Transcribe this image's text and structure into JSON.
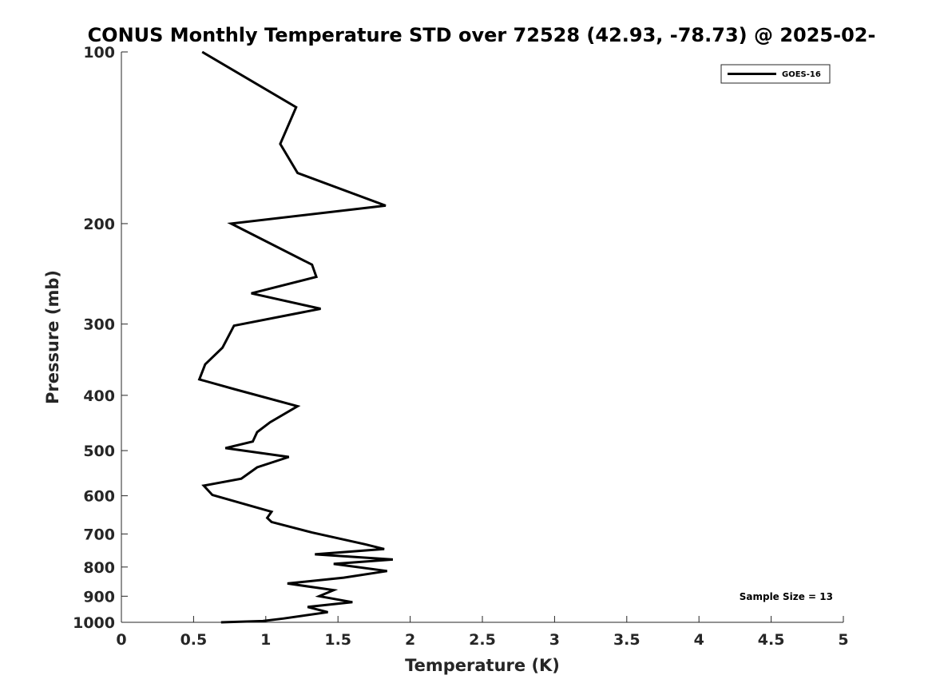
{
  "chart_data": {
    "type": "line",
    "title": "CONUS Monthly Temperature STD over 72528 (42.93, -78.73) @ 2025-02-",
    "xlabel": "Temperature (K)",
    "ylabel": "Pressure (mb)",
    "xlim": [
      0,
      5
    ],
    "ylim": [
      100,
      1000
    ],
    "y_scale": "log",
    "y_inverted": true,
    "xticks": [
      "0",
      "0.5",
      "1",
      "1.5",
      "2",
      "2.5",
      "3",
      "3.5",
      "4",
      "4.5",
      "5"
    ],
    "yticks": [
      "100",
      "200",
      "300",
      "400",
      "500",
      "600",
      "700",
      "800",
      "900",
      "1000"
    ],
    "legend_position": "top-right",
    "grid": false,
    "annotation": "Sample Size = 13",
    "series": [
      {
        "name": "GOES-16",
        "color": "#000000",
        "x": [
          0.56,
          1.21,
          1.1,
          1.22,
          1.83,
          0.76,
          1.32,
          1.35,
          0.9,
          1.38,
          0.78,
          0.7,
          0.58,
          0.54,
          0.78,
          1.22,
          1.03,
          0.94,
          0.91,
          0.72,
          1.16,
          0.94,
          0.83,
          0.57,
          0.63,
          1.04,
          1.01,
          1.04,
          1.32,
          1.69,
          1.82,
          1.34,
          1.88,
          1.47,
          1.84,
          1.54,
          1.15,
          1.47,
          1.37,
          1.6,
          1.29,
          1.43,
          1.12,
          0.98,
          0.69
        ],
        "y": [
          100,
          125,
          145,
          163,
          186,
          200,
          236,
          248,
          265,
          282,
          302,
          330,
          353,
          375,
          390,
          418,
          446,
          464,
          482,
          495,
          513,
          535,
          560,
          576,
          598,
          640,
          656,
          667,
          696,
          730,
          744,
          760,
          776,
          790,
          813,
          835,
          855,
          878,
          900,
          922,
          940,
          960,
          985,
          995,
          1000
        ]
      }
    ]
  }
}
